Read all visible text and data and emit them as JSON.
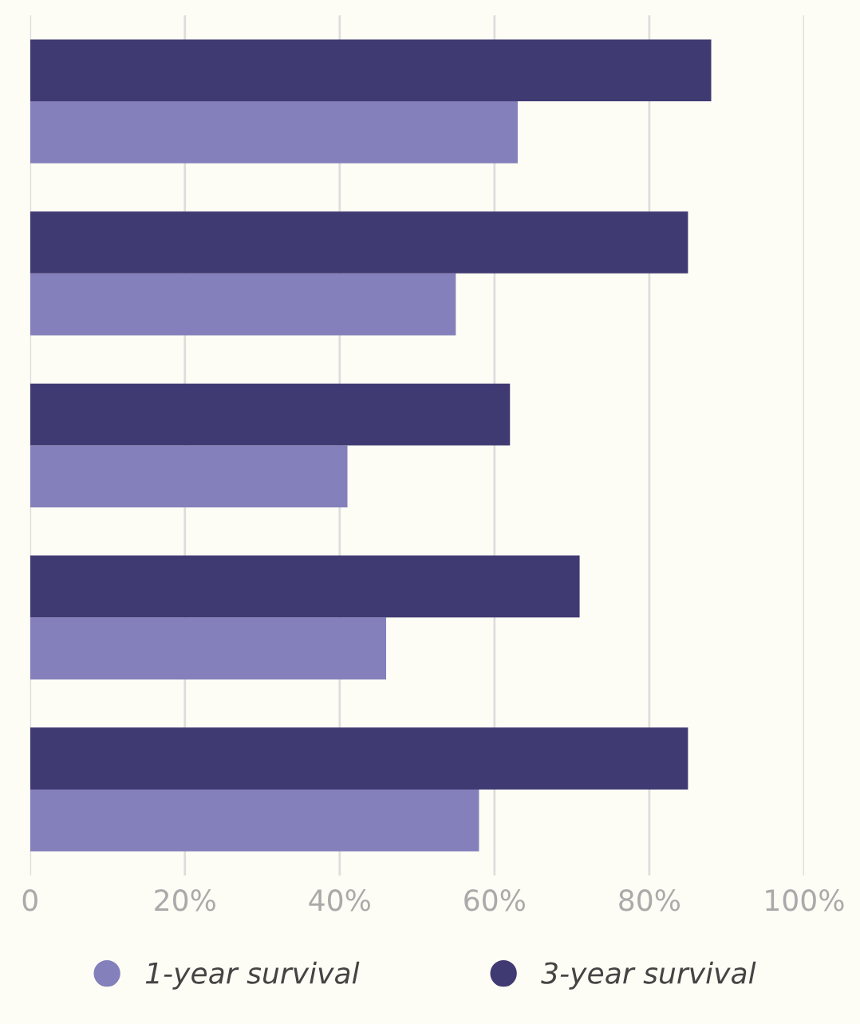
{
  "chart_data": {
    "type": "bar",
    "orientation": "horizontal",
    "categories": [
      null,
      null,
      null,
      null,
      null
    ],
    "series": [
      {
        "name": "1-year survival",
        "color": "#8480bb",
        "values": [
          63,
          55,
          41,
          46,
          58
        ]
      },
      {
        "name": "3-year survival",
        "color": "#403a73",
        "values": [
          88,
          85,
          62,
          71,
          85
        ]
      }
    ],
    "xlim": [
      0,
      100
    ],
    "xticks": [
      0,
      {
        "value": 20,
        "label": "20%"
      },
      {
        "value": 40,
        "label": "40%"
      },
      {
        "value": 60,
        "label": "60%"
      },
      {
        "value": 80,
        "label": "80%"
      },
      {
        "value": 100,
        "label": "100%"
      }
    ],
    "grid": "x",
    "legend": "bottom"
  }
}
